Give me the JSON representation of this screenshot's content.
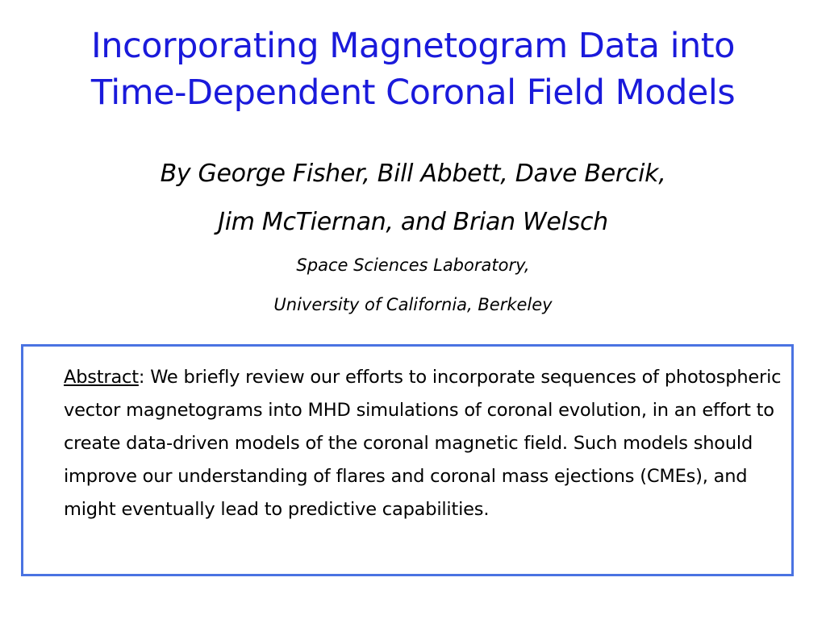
{
  "slide": {
    "title_line1": "Incorporating Magnetogram Data into",
    "title_line2": "Time-Dependent Coronal Field Models",
    "authors_line1": "By George Fisher, Bill Abbett, Dave Bercik,",
    "authors_line2": "Jim McTiernan, and Brian Welsch",
    "affiliation_line1": "Space Sciences Laboratory,",
    "affiliation_line2": "University of California, Berkeley",
    "abstract_label": "Abstract",
    "abstract_text": ": We briefly review our efforts to incorporate sequences of photospheric vector magnetograms into MHD simulations of coronal evolution, in an effort to create data-driven models of the coronal magnetic field. Such models should improve our understanding of flares and coronal mass ejections (CMEs), and might eventually lead to predictive capabilities.",
    "colors": {
      "title": "#1a1adb",
      "box_border": "#4a73e2",
      "text": "#000000"
    }
  }
}
